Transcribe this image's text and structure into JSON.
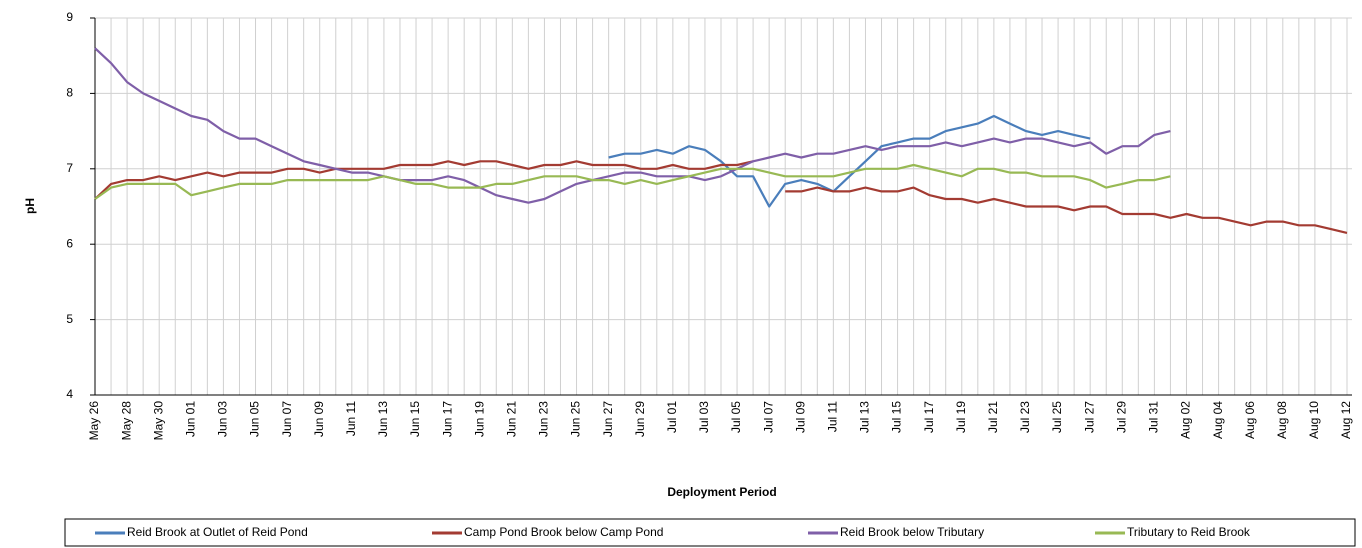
{
  "chart_data": {
    "type": "line",
    "x_label": "Deployment Period",
    "y_label": "pH",
    "categories": [
      "May 26",
      null,
      "May 28",
      null,
      "May 30",
      null,
      "Jun 01",
      null,
      "Jun 03",
      null,
      "Jun 05",
      null,
      "Jun 07",
      null,
      "Jun 09",
      null,
      "Jun 11",
      null,
      "Jun 13",
      null,
      "Jun 15",
      null,
      "Jun 17",
      null,
      "Jun 19",
      null,
      "Jun 21",
      null,
      "Jun 23",
      null,
      "Jun 25",
      null,
      "Jun 27",
      null,
      "Jun 29",
      null,
      "Jul 01",
      null,
      "Jul 03",
      null,
      "Jul 05",
      null,
      "Jul 07",
      null,
      "Jul 09",
      null,
      "Jul 11",
      null,
      "Jul 13",
      null,
      "Jul 15",
      null,
      "Jul 17",
      null,
      "Jul 19",
      null,
      "Jul 21",
      null,
      "Jul 23",
      null,
      "Jul 25",
      null,
      "Jul 27",
      null,
      "Jul 29",
      null,
      "Jul 31",
      null,
      "Aug 02",
      null,
      "Aug 04",
      null,
      "Aug 06",
      null,
      "Aug 08",
      null,
      "Aug 10",
      null,
      "Aug 12"
    ],
    "ylim": [
      4,
      9
    ],
    "yticks": [
      4,
      5,
      6,
      7,
      8,
      9
    ],
    "grid": true,
    "series": [
      {
        "name": "Reid Brook at Outlet of Reid Pond",
        "color": "#4a7ebb",
        "values": [
          null,
          null,
          null,
          null,
          null,
          null,
          null,
          null,
          null,
          null,
          null,
          null,
          null,
          null,
          null,
          null,
          null,
          null,
          null,
          null,
          null,
          null,
          null,
          null,
          null,
          null,
          null,
          null,
          null,
          null,
          null,
          null,
          7.15,
          7.2,
          7.2,
          7.25,
          7.2,
          7.3,
          7.25,
          7.1,
          6.9,
          6.9,
          6.5,
          6.8,
          6.85,
          6.8,
          6.7,
          6.9,
          7.1,
          7.3,
          7.35,
          7.4,
          7.4,
          7.5,
          7.55,
          7.6,
          7.7,
          7.6,
          7.5,
          7.45,
          7.5,
          7.45,
          7.4,
          null,
          null,
          null,
          null,
          null,
          null,
          null,
          null,
          null,
          null,
          null,
          null,
          null,
          null,
          null,
          null
        ]
      },
      {
        "name": "Camp Pond Brook below Camp Pond",
        "color": "#a33b32",
        "values": [
          6.6,
          6.8,
          6.85,
          6.85,
          6.9,
          6.85,
          6.9,
          6.95,
          6.9,
          6.95,
          6.95,
          6.95,
          7.0,
          7.0,
          6.95,
          7.0,
          7.0,
          7.0,
          7.0,
          7.05,
          7.05,
          7.05,
          7.1,
          7.05,
          7.1,
          7.1,
          7.05,
          7.0,
          7.05,
          7.05,
          7.1,
          7.05,
          7.05,
          7.05,
          7.0,
          7.0,
          7.05,
          7.0,
          7.0,
          7.05,
          7.05,
          7.1,
          null,
          6.7,
          6.7,
          6.75,
          6.7,
          6.7,
          6.75,
          6.7,
          6.7,
          6.75,
          6.65,
          6.6,
          6.6,
          6.55,
          6.6,
          6.55,
          6.5,
          6.5,
          6.5,
          6.45,
          6.5,
          6.5,
          6.4,
          6.4,
          6.4,
          6.35,
          6.4,
          6.35,
          6.35,
          6.3,
          6.25,
          6.3,
          6.3,
          6.25,
          6.25,
          6.2,
          6.15
        ]
      },
      {
        "name": "Reid Brook below Tributary",
        "color": "#7f5fa8",
        "values": [
          8.6,
          8.4,
          8.15,
          8.0,
          7.9,
          7.8,
          7.7,
          7.65,
          7.5,
          7.4,
          7.4,
          7.3,
          7.2,
          7.1,
          7.05,
          7.0,
          6.95,
          6.95,
          6.9,
          6.85,
          6.85,
          6.85,
          6.9,
          6.85,
          6.75,
          6.65,
          6.6,
          6.55,
          6.6,
          6.7,
          6.8,
          6.85,
          6.9,
          6.95,
          6.95,
          6.9,
          6.9,
          6.9,
          6.85,
          6.9,
          7.0,
          7.1,
          7.15,
          7.2,
          7.15,
          7.2,
          7.2,
          7.25,
          7.3,
          7.25,
          7.3,
          7.3,
          7.3,
          7.35,
          7.3,
          7.35,
          7.4,
          7.35,
          7.4,
          7.4,
          7.35,
          7.3,
          7.35,
          7.2,
          7.3,
          7.3,
          7.45,
          7.5,
          null,
          null,
          null,
          null,
          null,
          null,
          null,
          null,
          null,
          null,
          null
        ]
      },
      {
        "name": "Tributary to Reid Brook",
        "color": "#98b954",
        "values": [
          6.6,
          6.75,
          6.8,
          6.8,
          6.8,
          6.8,
          6.65,
          6.7,
          6.75,
          6.8,
          6.8,
          6.8,
          6.85,
          6.85,
          6.85,
          6.85,
          6.85,
          6.85,
          6.9,
          6.85,
          6.8,
          6.8,
          6.75,
          6.75,
          6.75,
          6.8,
          6.8,
          6.85,
          6.9,
          6.9,
          6.9,
          6.85,
          6.85,
          6.8,
          6.85,
          6.8,
          6.85,
          6.9,
          6.95,
          7.0,
          7.0,
          7.0,
          6.95,
          6.9,
          6.9,
          6.9,
          6.9,
          6.95,
          7.0,
          7.0,
          7.0,
          7.05,
          7.0,
          6.95,
          6.9,
          7.0,
          7.0,
          6.95,
          6.95,
          6.9,
          6.9,
          6.9,
          6.85,
          6.75,
          6.8,
          6.85,
          6.85,
          6.9,
          null,
          null,
          null,
          null,
          null,
          null,
          null,
          null,
          null,
          null,
          null
        ]
      }
    ]
  }
}
